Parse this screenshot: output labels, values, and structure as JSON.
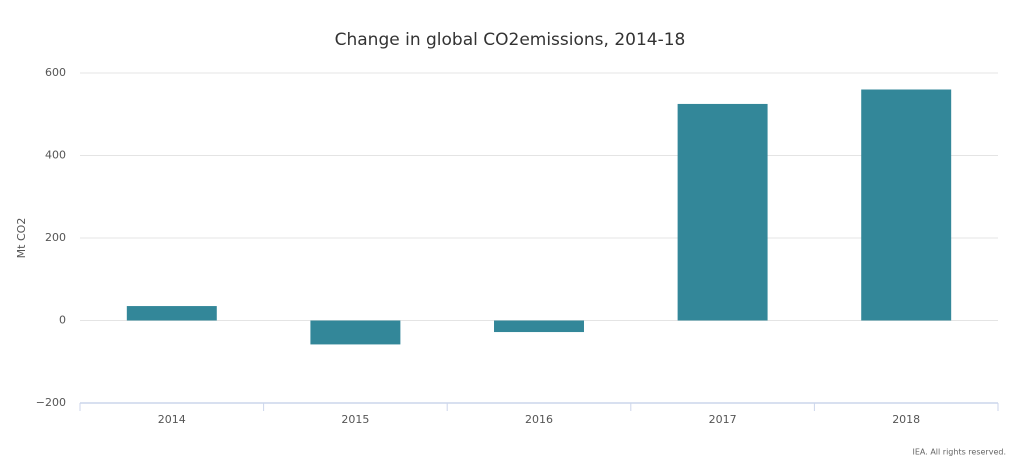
{
  "chart_data": {
    "type": "bar",
    "title": "Change in global CO2emissions, 2014-18",
    "y_label": "Mt CO2",
    "categories": [
      "2014",
      "2015",
      "2016",
      "2017",
      "2018"
    ],
    "values": [
      35,
      -58,
      -28,
      525,
      560
    ],
    "color": "#338799",
    "ylim": [
      -200,
      600
    ],
    "yticks": [
      {
        "value": -200,
        "label": "−200"
      },
      0,
      200,
      400,
      600
    ],
    "grid": true,
    "credit": "IEA. All rights reserved."
  }
}
